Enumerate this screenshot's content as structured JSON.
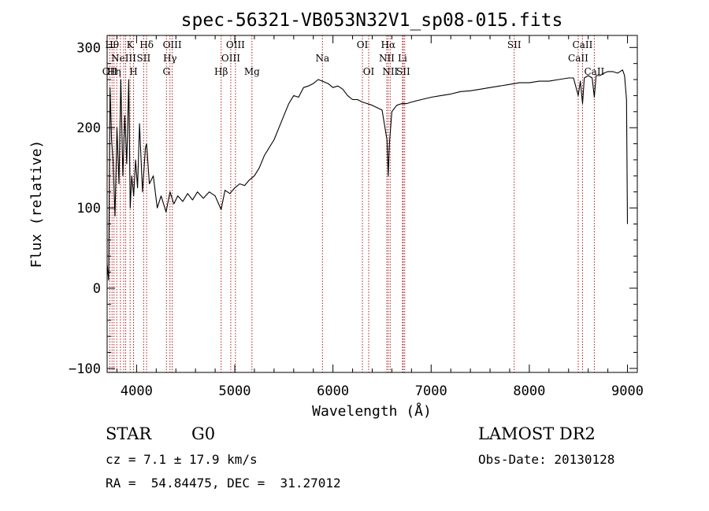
{
  "chart_data": {
    "type": "line",
    "title": "spec-56321-VB053N32V1_sp08-015.fits",
    "xlabel": "Wavelength (Å)",
    "ylabel": "Flux (relative)",
    "xlim": [
      3700,
      9100
    ],
    "ylim": [
      -105,
      315
    ],
    "x_ticks": [
      4000,
      5000,
      6000,
      7000,
      8000,
      9000
    ],
    "x_tick_labels": [
      "4000",
      "5000",
      "6000",
      "7000",
      "8000",
      "9000"
    ],
    "y_ticks": [
      -100,
      0,
      100,
      200,
      300
    ],
    "y_tick_labels": [
      "−100",
      "0",
      "100",
      "200",
      "300"
    ],
    "grid": false,
    "line_color": "#000000",
    "marker_color": "#b01818",
    "spectrum": {
      "x": [
        3700,
        3715,
        3730,
        3745,
        3760,
        3780,
        3800,
        3820,
        3840,
        3860,
        3880,
        3900,
        3920,
        3935,
        3950,
        3970,
        3990,
        4010,
        4030,
        4060,
        4090,
        4102,
        4130,
        4170,
        4210,
        4250,
        4300,
        4340,
        4380,
        4420,
        4470,
        4520,
        4570,
        4620,
        4680,
        4740,
        4800,
        4861,
        4900,
        4950,
        5000,
        5050,
        5100,
        5150,
        5200,
        5250,
        5300,
        5350,
        5400,
        5450,
        5500,
        5550,
        5600,
        5650,
        5700,
        5750,
        5800,
        5850,
        5893,
        5950,
        6000,
        6050,
        6100,
        6150,
        6200,
        6250,
        6300,
        6350,
        6400,
        6450,
        6500,
        6530,
        6550,
        6563,
        6575,
        6600,
        6650,
        6700,
        6750,
        6800,
        6900,
        7000,
        7100,
        7200,
        7300,
        7400,
        7500,
        7600,
        7700,
        7800,
        7900,
        8000,
        8100,
        8200,
        8300,
        8400,
        8450,
        8498,
        8520,
        8542,
        8560,
        8600,
        8640,
        8662,
        8680,
        8720,
        8760,
        8800,
        8850,
        8900,
        8950,
        8970,
        8990,
        9000
      ],
      "y": [
        30,
        10,
        250,
        185,
        160,
        90,
        200,
        130,
        260,
        140,
        215,
        155,
        260,
        100,
        140,
        115,
        160,
        125,
        205,
        120,
        175,
        180,
        130,
        140,
        100,
        115,
        95,
        120,
        105,
        115,
        108,
        118,
        110,
        120,
        112,
        120,
        115,
        98,
        122,
        118,
        125,
        130,
        128,
        135,
        140,
        150,
        165,
        175,
        185,
        200,
        215,
        230,
        240,
        238,
        250,
        252,
        255,
        260,
        258,
        255,
        250,
        252,
        248,
        240,
        235,
        235,
        232,
        230,
        228,
        225,
        222,
        200,
        185,
        140,
        180,
        220,
        228,
        230,
        230,
        232,
        235,
        238,
        240,
        242,
        245,
        246,
        248,
        250,
        252,
        254,
        256,
        256,
        258,
        258,
        260,
        262,
        262,
        240,
        258,
        230,
        262,
        265,
        262,
        238,
        265,
        265,
        268,
        270,
        270,
        268,
        272,
        265,
        235,
        80
      ]
    },
    "line_markers": [
      {
        "x": 3727,
        "label": "OII",
        "row": 3
      },
      {
        "x": 3750,
        "label": "Hθ",
        "row": 1
      },
      {
        "x": 3770,
        "label": "Hη",
        "row": 3
      },
      {
        "x": 3798,
        "label": "",
        "row": 0
      },
      {
        "x": 3835,
        "label": "",
        "row": 0
      },
      {
        "x": 3869,
        "label": "NeIII",
        "row": 2
      },
      {
        "x": 3889,
        "label": "",
        "row": 0
      },
      {
        "x": 3934,
        "label": "K",
        "row": 1
      },
      {
        "x": 3969,
        "label": "H",
        "row": 3
      },
      {
        "x": 4072,
        "label": "SII",
        "row": 2
      },
      {
        "x": 4102,
        "label": "Hδ",
        "row": 1
      },
      {
        "x": 4304,
        "label": "G",
        "row": 3
      },
      {
        "x": 4340,
        "label": "Hγ",
        "row": 2
      },
      {
        "x": 4363,
        "label": "OIII",
        "row": 1
      },
      {
        "x": 4861,
        "label": "Hβ",
        "row": 3
      },
      {
        "x": 4959,
        "label": "OIII",
        "row": 2
      },
      {
        "x": 5007,
        "label": "OIII",
        "row": 1
      },
      {
        "x": 5175,
        "label": "Mg",
        "row": 3
      },
      {
        "x": 5893,
        "label": "Na",
        "row": 2
      },
      {
        "x": 6300,
        "label": "OI",
        "row": 1
      },
      {
        "x": 6364,
        "label": "OI",
        "row": 3
      },
      {
        "x": 6548,
        "label": "NII",
        "row": 2
      },
      {
        "x": 6563,
        "label": "Hα",
        "row": 1
      },
      {
        "x": 6583,
        "label": "NII",
        "row": 3
      },
      {
        "x": 6708,
        "label": "Li",
        "row": 2
      },
      {
        "x": 6716,
        "label": "SII",
        "row": 3
      },
      {
        "x": 6731,
        "label": "",
        "row": 0
      },
      {
        "x": 7846,
        "label": "SII",
        "row": 1
      },
      {
        "x": 8498,
        "label": "CaII",
        "row": 2
      },
      {
        "x": 8542,
        "label": "CaII",
        "row": 1
      },
      {
        "x": 8662,
        "label": "CaII",
        "row": 3
      }
    ]
  },
  "info": {
    "object_class": "STAR",
    "subclass": "G0",
    "survey": "LAMOST DR2",
    "redshift_line": "cz = 7.1 ± 17.9 km/s",
    "obs_date_line": "Obs-Date: 20130128",
    "coords_line": "RA =  54.84475, DEC =  31.27012"
  }
}
